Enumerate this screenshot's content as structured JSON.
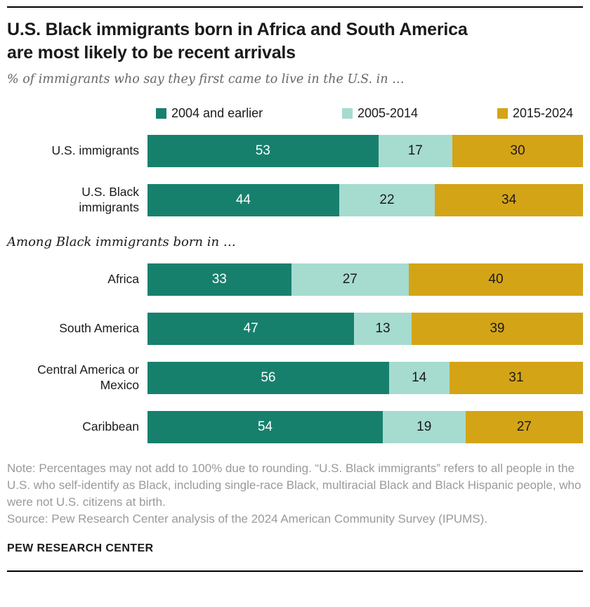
{
  "page": {
    "title": "U.S. Black immigrants born in Africa and South America are most likely to be recent arrivals",
    "subtitle": "% of immigrants who say they first came to live in the U.S. in …",
    "section_label": "Among Black immigrants born in …",
    "note": "Note: Percentages may not add to 100% due to rounding. “U.S. Black immigrants” refers to all people in the U.S. who self-identify as Black, including single-race Black, multiracial Black and Black Hispanic people, who were not U.S. citizens at birth.",
    "source": "Source: Pew Research Center analysis of the 2024 American Community Survey (IPUMS).",
    "footer": "PEW RESEARCH CENTER"
  },
  "colors": {
    "teal_dark": "#17806d",
    "teal_light": "#a6dbd0",
    "gold": "#d4a417",
    "text_on_dark": "#ffffff",
    "text_on_light": "#1a1a1a",
    "note_gray": "#9a9a9a"
  },
  "chart_data": {
    "type": "bar",
    "orientation": "horizontal",
    "stacked": true,
    "value_unit": "%",
    "legend_position": "top",
    "categories": [
      "U.S. immigrants",
      "U.S. Black immigrants",
      "Africa",
      "South America",
      "Central America or Mexico",
      "Caribbean"
    ],
    "section_break_index": 2,
    "series": [
      {
        "name": "2004 and earlier",
        "color": "#17806d",
        "text_color": "#ffffff",
        "values": [
          53,
          44,
          33,
          47,
          56,
          54
        ]
      },
      {
        "name": "2005-2014",
        "color": "#a6dbd0",
        "text_color": "#1a1a1a",
        "values": [
          17,
          22,
          27,
          13,
          14,
          19
        ]
      },
      {
        "name": "2015-2024",
        "color": "#d4a417",
        "text_color": "#1a1a1a",
        "values": [
          30,
          34,
          40,
          39,
          31,
          27
        ]
      }
    ]
  }
}
